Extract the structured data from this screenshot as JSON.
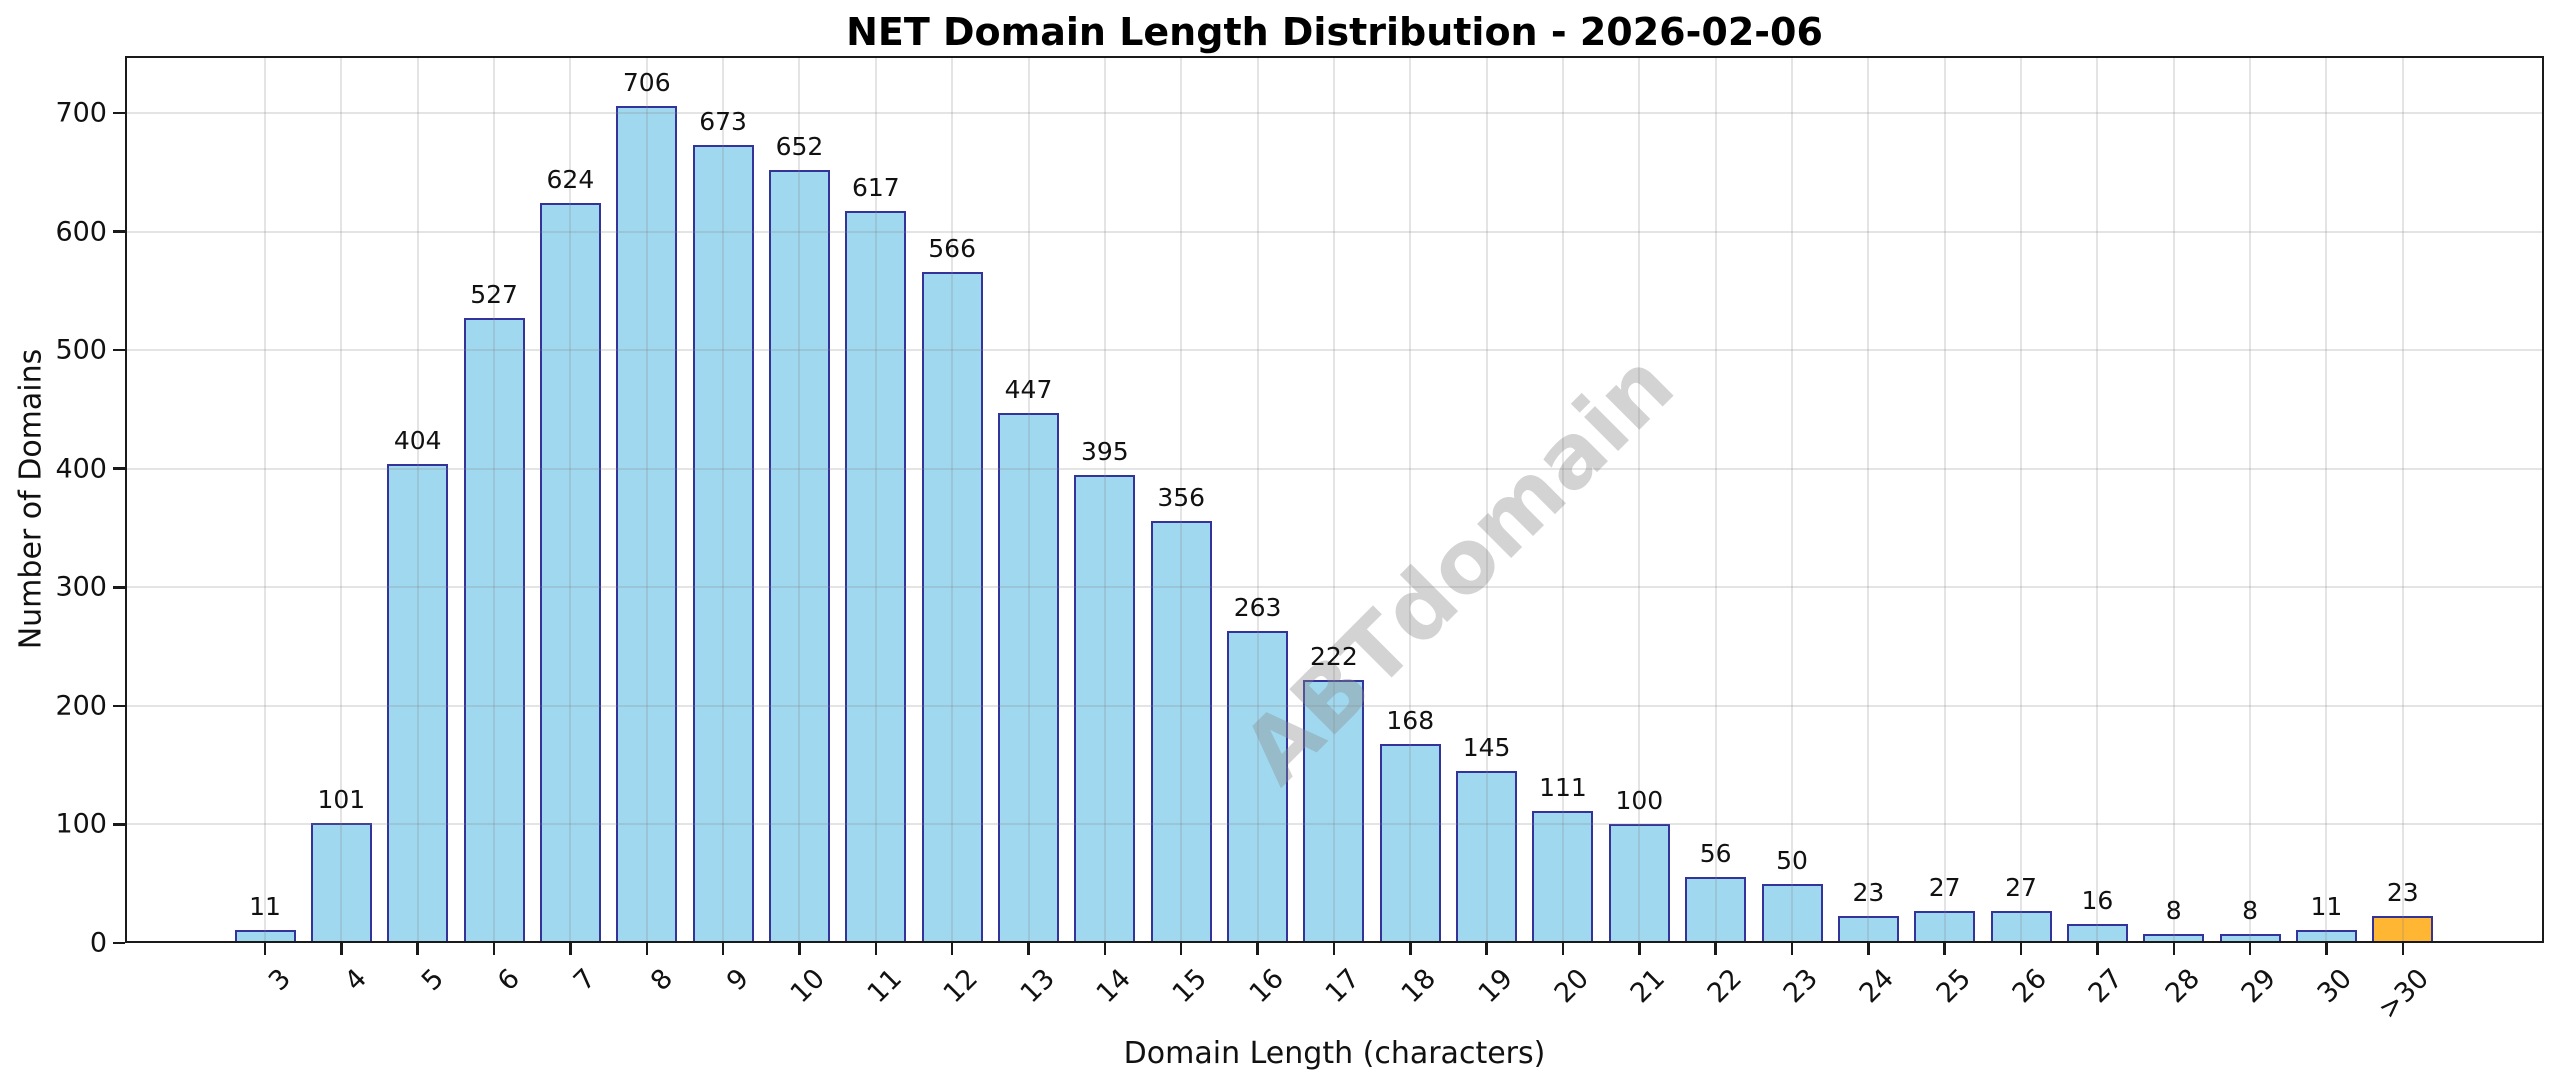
{
  "title": "NET Domain Length Distribution - 2026-02-06",
  "watermark_text": "ABTdomain",
  "chart_data": {
    "type": "bar",
    "title": "NET Domain Length Distribution - 2026-02-06",
    "xlabel": "Domain Length (characters)",
    "ylabel": "Number of Domains",
    "categories": [
      "3",
      "4",
      "5",
      "6",
      "7",
      "8",
      "9",
      "10",
      "11",
      "12",
      "13",
      "14",
      "15",
      "16",
      "17",
      "18",
      "19",
      "20",
      "21",
      "22",
      "23",
      "24",
      "25",
      "26",
      "27",
      "28",
      "29",
      "30",
      ">30"
    ],
    "values": [
      11,
      101,
      404,
      527,
      624,
      706,
      673,
      652,
      617,
      566,
      447,
      395,
      356,
      263,
      222,
      168,
      145,
      111,
      100,
      56,
      50,
      23,
      27,
      27,
      16,
      8,
      8,
      11,
      23
    ],
    "bar_color": "#9FD8EF",
    "bar_edge_color": "#333399",
    "highlight_index": 28,
    "highlight_color": "#FFB733",
    "ylim": [
      0,
      748
    ],
    "yticks": [
      0,
      100,
      200,
      300,
      400,
      500,
      600,
      700
    ],
    "grid": true,
    "legend": "none",
    "watermark": "ABTdomain",
    "value_labels": true
  }
}
